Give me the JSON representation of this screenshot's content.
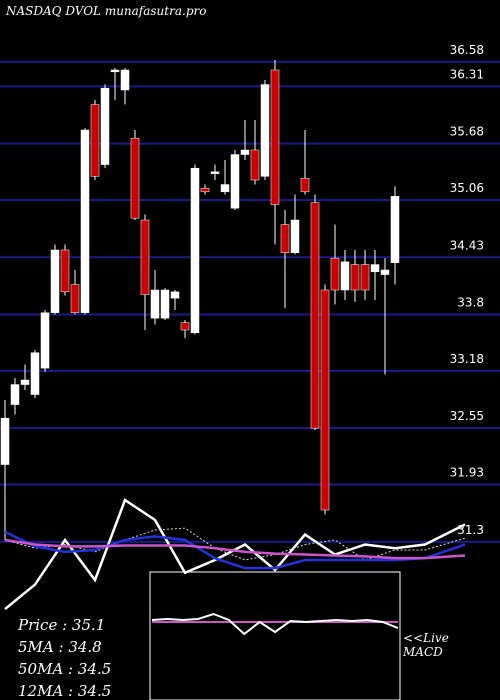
{
  "chart_data": {
    "type": "candlestick",
    "title": "NASDAQ DVOL munafasutra.pro",
    "ylim": [
      29.56,
      37.26
    ],
    "yticks": [
      36.58,
      36.31,
      35.68,
      35.06,
      34.43,
      33.8,
      33.18,
      32.55,
      31.93,
      31.3
    ],
    "grid": true,
    "up_color": "#ffffff",
    "down_color": "#cc0000",
    "grid_color": "#1a1a8c",
    "candles": [
      {
        "open": 32.15,
        "high": 32.86,
        "low": 31.32,
        "close": 32.66
      },
      {
        "open": 32.81,
        "high": 33.1,
        "low": 32.7,
        "close": 33.03
      },
      {
        "open": 33.03,
        "high": 33.25,
        "low": 32.97,
        "close": 33.08
      },
      {
        "open": 32.92,
        "high": 33.41,
        "low": 32.88,
        "close": 33.38
      },
      {
        "open": 33.21,
        "high": 33.85,
        "low": 33.17,
        "close": 33.82
      },
      {
        "open": 33.82,
        "high": 34.57,
        "low": 33.8,
        "close": 34.51
      },
      {
        "open": 34.51,
        "high": 34.57,
        "low": 34.01,
        "close": 34.05
      },
      {
        "open": 34.13,
        "high": 34.29,
        "low": 33.8,
        "close": 33.82
      },
      {
        "open": 33.82,
        "high": 35.85,
        "low": 33.8,
        "close": 35.83
      },
      {
        "open": 36.11,
        "high": 36.16,
        "low": 35.28,
        "close": 35.32
      },
      {
        "open": 35.45,
        "high": 36.33,
        "low": 35.41,
        "close": 36.29
      },
      {
        "open": 36.47,
        "high": 36.51,
        "low": 36.16,
        "close": 36.49
      },
      {
        "open": 36.27,
        "high": 36.51,
        "low": 36.11,
        "close": 36.49
      },
      {
        "open": 35.74,
        "high": 35.83,
        "low": 34.84,
        "close": 34.86
      },
      {
        "open": 34.84,
        "high": 34.9,
        "low": 33.63,
        "close": 34.02
      },
      {
        "open": 33.76,
        "high": 34.29,
        "low": 33.69,
        "close": 34.07
      },
      {
        "open": 33.76,
        "high": 34.09,
        "low": 33.74,
        "close": 34.07
      },
      {
        "open": 33.98,
        "high": 34.07,
        "low": 33.85,
        "close": 34.05
      },
      {
        "open": 33.71,
        "high": 33.74,
        "low": 33.54,
        "close": 33.63
      },
      {
        "open": 33.6,
        "high": 35.45,
        "low": 33.58,
        "close": 35.41
      },
      {
        "open": 35.19,
        "high": 35.23,
        "low": 35.12,
        "close": 35.15
      },
      {
        "open": 35.35,
        "high": 35.45,
        "low": 35.28,
        "close": 35.37
      },
      {
        "open": 35.15,
        "high": 35.5,
        "low": 35.12,
        "close": 35.23
      },
      {
        "open": 34.97,
        "high": 35.61,
        "low": 34.95,
        "close": 35.56
      },
      {
        "open": 35.56,
        "high": 35.94,
        "low": 35.5,
        "close": 35.61
      },
      {
        "open": 35.61,
        "high": 35.94,
        "low": 35.23,
        "close": 35.28
      },
      {
        "open": 35.32,
        "high": 36.38,
        "low": 35.28,
        "close": 36.33
      },
      {
        "open": 36.49,
        "high": 36.6,
        "low": 34.57,
        "close": 35.01
      },
      {
        "open": 34.79,
        "high": 34.95,
        "low": 33.87,
        "close": 34.48
      },
      {
        "open": 34.48,
        "high": 35.12,
        "low": 34.46,
        "close": 34.84
      },
      {
        "open": 35.3,
        "high": 35.83,
        "low": 35.12,
        "close": 35.15
      },
      {
        "open": 35.03,
        "high": 35.12,
        "low": 32.53,
        "close": 32.55
      },
      {
        "open": 34.07,
        "high": 34.13,
        "low": 31.6,
        "close": 31.65
      },
      {
        "open": 34.42,
        "high": 34.79,
        "low": 33.91,
        "close": 34.07
      },
      {
        "open": 34.07,
        "high": 34.51,
        "low": 33.96,
        "close": 34.38
      },
      {
        "open": 34.35,
        "high": 34.51,
        "low": 33.94,
        "close": 34.07
      },
      {
        "open": 34.35,
        "high": 34.51,
        "low": 33.96,
        "close": 34.07
      },
      {
        "open": 34.27,
        "high": 34.51,
        "low": 33.96,
        "close": 34.35
      },
      {
        "open": 34.24,
        "high": 34.42,
        "low": 33.14,
        "close": 34.29
      },
      {
        "open": 34.37,
        "high": 35.21,
        "low": 34.13,
        "close": 35.1
      }
    ],
    "indicator_x": [
      0,
      3,
      6,
      9,
      12,
      15,
      18,
      21,
      24,
      27,
      30,
      33,
      36,
      39,
      42,
      46
    ],
    "indicators": [
      {
        "color": "#ffffff",
        "values": [
          30.56,
          30.83,
          31.32,
          30.88,
          31.76,
          31.54,
          30.96,
          31.1,
          31.27,
          30.99,
          31.38,
          31.16,
          31.27,
          31.23,
          31.27,
          31.49
        ]
      },
      {
        "color": "#dddddd",
        "dashed": true,
        "values": [
          31.32,
          31.23,
          31.27,
          31.19,
          31.32,
          31.43,
          31.45,
          31.23,
          31.1,
          31.16,
          31.27,
          31.32,
          31.1,
          31.21,
          31.21,
          31.34
        ]
      },
      {
        "color": "#2233dd",
        "values": [
          31.41,
          31.25,
          31.19,
          31.21,
          31.32,
          31.36,
          31.32,
          31.12,
          31.01,
          31.01,
          31.1,
          31.1,
          31.1,
          31.1,
          31.12,
          31.27
        ]
      },
      {
        "color": "#cc55cc",
        "values": [
          31.32,
          31.27,
          31.25,
          31.25,
          31.26,
          31.26,
          31.26,
          31.23,
          31.19,
          31.17,
          31.16,
          31.15,
          31.14,
          31.12,
          31.12,
          31.15
        ]
      }
    ],
    "macd": {
      "color": "#ffffff",
      "values": [
        0.1,
        0.15,
        0.1,
        0.15,
        0.4,
        0.1,
        -0.6,
        0.0,
        -0.5,
        0.05,
        0.0,
        0.05,
        0.1,
        0.05,
        0.1,
        0.0,
        -0.3
      ]
    },
    "signal": {
      "color": "#cc55cc",
      "values": [
        0.0,
        0.0,
        0.0,
        0.0,
        0.0,
        0.0,
        0.0,
        0.0,
        0.0,
        0.0,
        0.0,
        0.0,
        0.0,
        0.0,
        0.0,
        0.0,
        0.0
      ]
    },
    "info": [
      "Price   : 35.1",
      "5MA  : 34.8",
      "50MA : 34.5",
      "12MA : 34.5"
    ],
    "live_label": [
      "<<Live",
      "MACD"
    ]
  }
}
